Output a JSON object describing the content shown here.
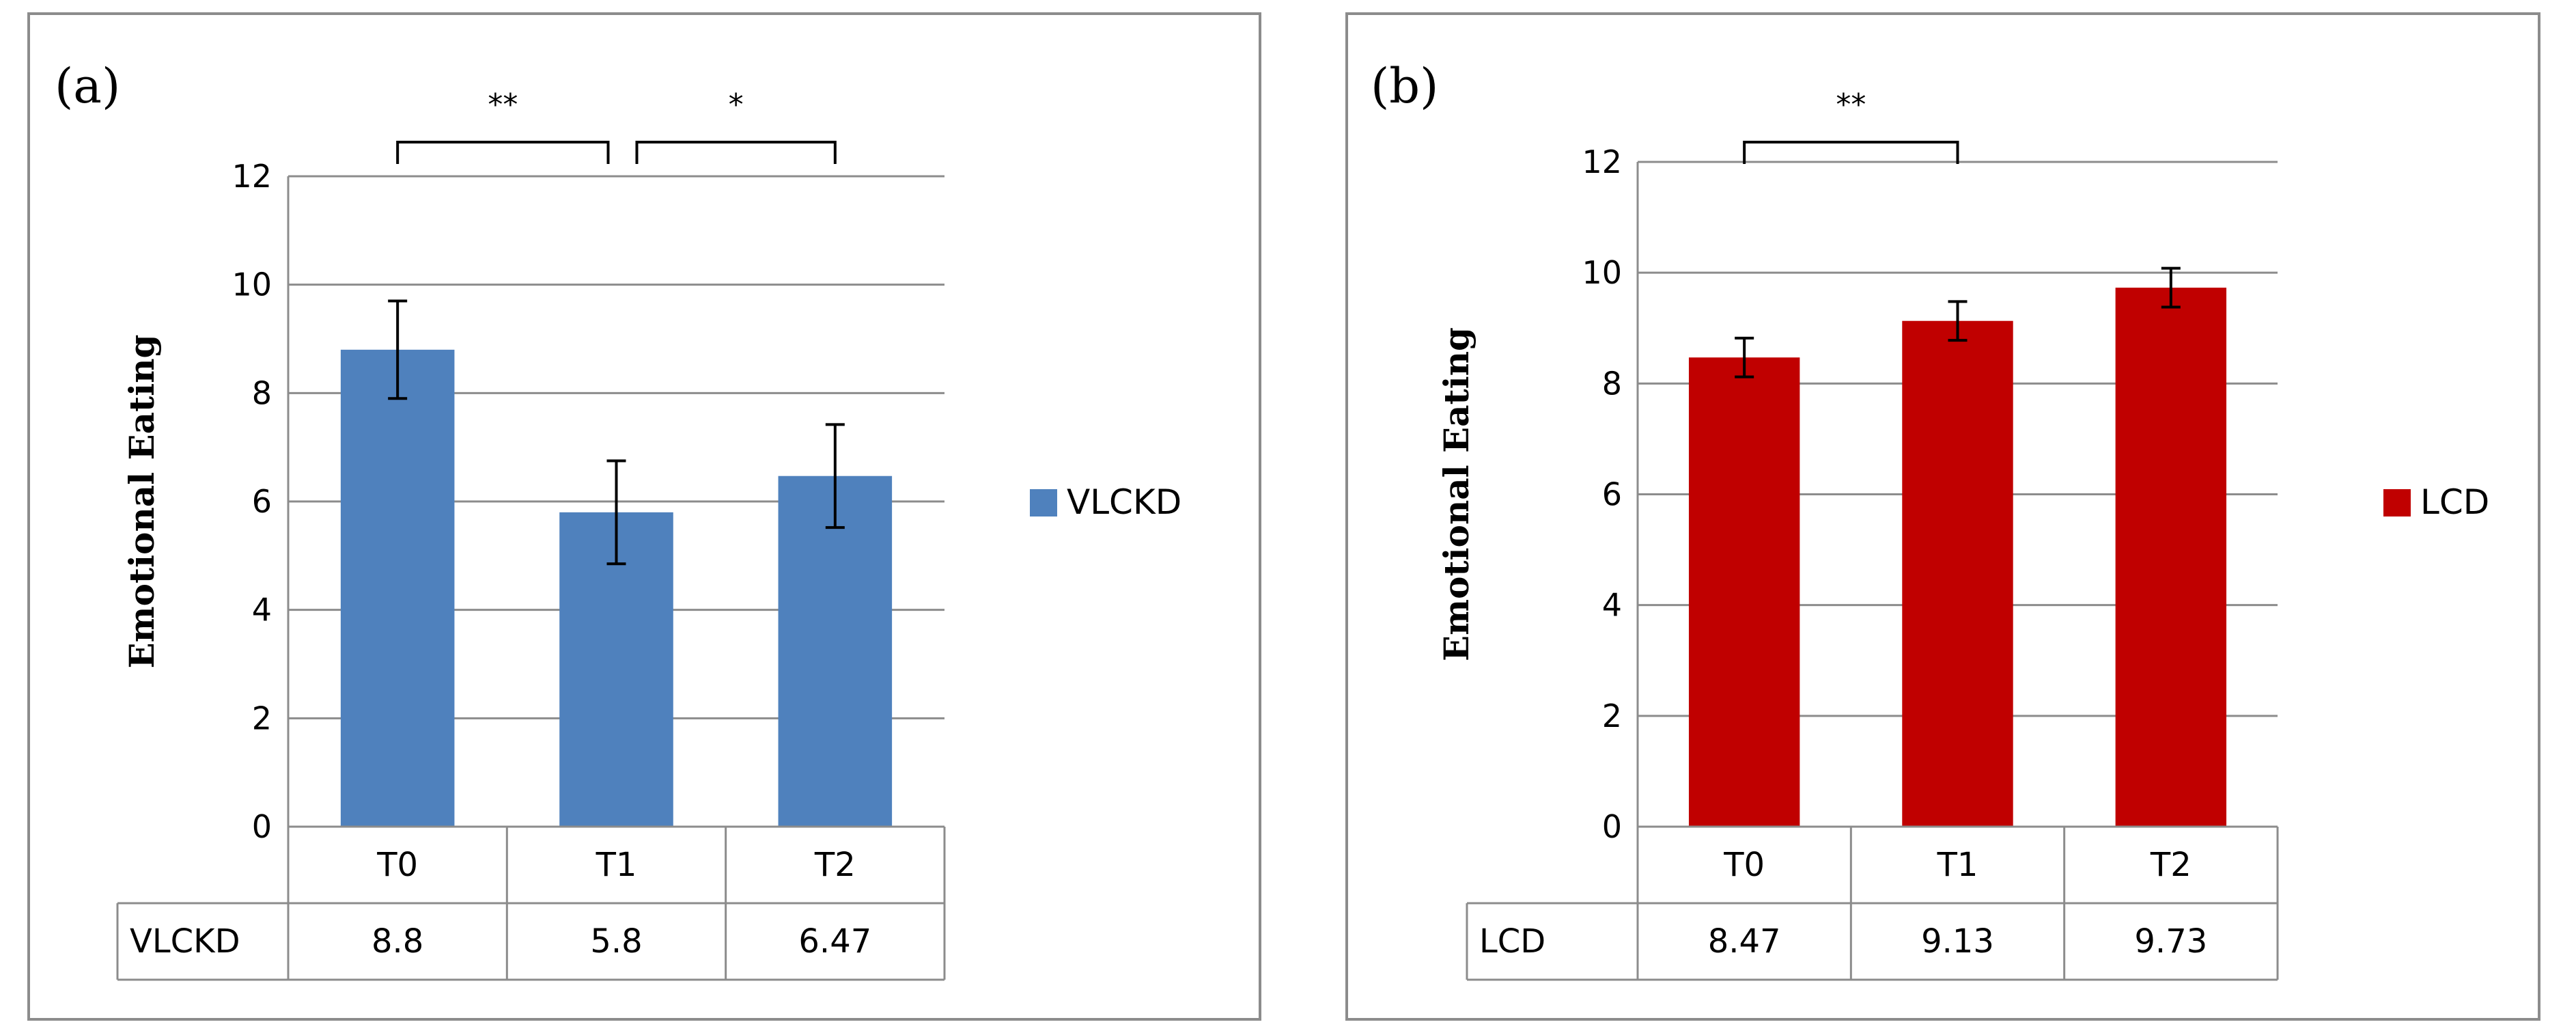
{
  "chart_data": [
    {
      "type": "bar",
      "panel_label": "(a)",
      "categories": [
        "T0",
        "T1",
        "T2"
      ],
      "series": [
        {
          "name": "VLCKD",
          "values": [
            8.8,
            5.8,
            6.47
          ],
          "color": "#4f81bd"
        }
      ],
      "value_labels": [
        "8.8",
        "5.8",
        "6.47"
      ],
      "errors": [
        0.9,
        0.95,
        0.95
      ],
      "ylabel": "Emotional Eating",
      "xlabel": "",
      "ylim": [
        0,
        12
      ],
      "yticks": [
        0,
        2,
        4,
        6,
        8,
        10,
        12
      ],
      "ytick_labels": [
        "0",
        "2",
        "4",
        "6",
        "8",
        "10",
        "12"
      ],
      "grid": true,
      "legend": {
        "label": "VLCKD",
        "position": "right"
      },
      "significance": [
        {
          "from": 0,
          "to": 1,
          "label": "**"
        },
        {
          "from": 1,
          "to": 2,
          "label": "*"
        }
      ]
    },
    {
      "type": "bar",
      "panel_label": "(b)",
      "categories": [
        "T0",
        "T1",
        "T2"
      ],
      "series": [
        {
          "name": "LCD",
          "values": [
            8.47,
            9.13,
            9.73
          ],
          "color": "#c00000"
        }
      ],
      "value_labels": [
        "8.47",
        "9.13",
        "9.73"
      ],
      "errors": [
        0.35,
        0.35,
        0.35
      ],
      "ylabel": "Emotional Eating",
      "xlabel": "",
      "ylim": [
        0,
        12
      ],
      "yticks": [
        0,
        2,
        4,
        6,
        8,
        10,
        12
      ],
      "ytick_labels": [
        "0",
        "2",
        "4",
        "6",
        "8",
        "10",
        "12"
      ],
      "grid": true,
      "legend": {
        "label": "LCD",
        "position": "right"
      },
      "significance": [
        {
          "from": 0,
          "to": 1,
          "label": "**"
        }
      ]
    }
  ]
}
